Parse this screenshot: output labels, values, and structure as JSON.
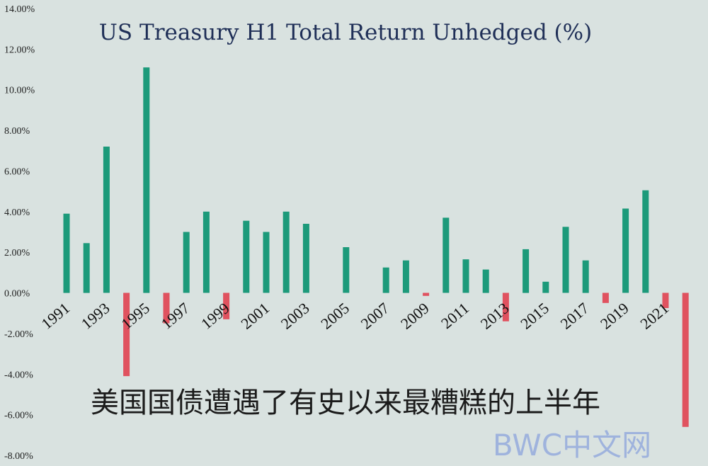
{
  "chart_data": {
    "type": "bar",
    "title": "US Treasury H1 Total Return Unhedged (%)",
    "xlabel": "",
    "ylabel": "",
    "ylim": [
      -8,
      14
    ],
    "y_ticks": [
      "14.00%",
      "12.00%",
      "10.00%",
      "8.00%",
      "6.00%",
      "4.00%",
      "2.00%",
      "0.00%",
      "-2.00%",
      "-4.00%",
      "-6.00%",
      "-8.00%"
    ],
    "categories": [
      "1991",
      "1992",
      "1993",
      "1994",
      "1995",
      "1996",
      "1997",
      "1998",
      "1999",
      "2000",
      "2001",
      "2002",
      "2003",
      "2004",
      "2005",
      "2006",
      "2007",
      "2008",
      "2009",
      "2010",
      "2011",
      "2012",
      "2013",
      "2014",
      "2015",
      "2016",
      "2017",
      "2018",
      "2019",
      "2020",
      "2021",
      "2022"
    ],
    "x_tick_labels": [
      "1991",
      "1993",
      "1995",
      "1997",
      "1999",
      "2001",
      "2003",
      "2005",
      "2007",
      "2009",
      "2011",
      "2013",
      "2015",
      "2017",
      "2019",
      "2021"
    ],
    "values": [
      3.9,
      2.45,
      7.2,
      -4.1,
      11.1,
      -1.5,
      3.0,
      4.0,
      -1.3,
      3.55,
      3.0,
      4.0,
      3.4,
      0.0,
      2.25,
      0.0,
      1.25,
      1.6,
      -0.15,
      3.7,
      1.65,
      1.15,
      -1.4,
      2.15,
      0.55,
      3.25,
      1.6,
      -0.5,
      4.15,
      5.05,
      -0.75,
      -6.6
    ],
    "colors": {
      "positive": "#1c9a7a",
      "negative": "#e0525f"
    },
    "grid": false,
    "legend": "none"
  },
  "overlay": {
    "caption": "美国国债遭遇了有史以来最糟糕的上半年",
    "watermark": "BWC中文网"
  }
}
